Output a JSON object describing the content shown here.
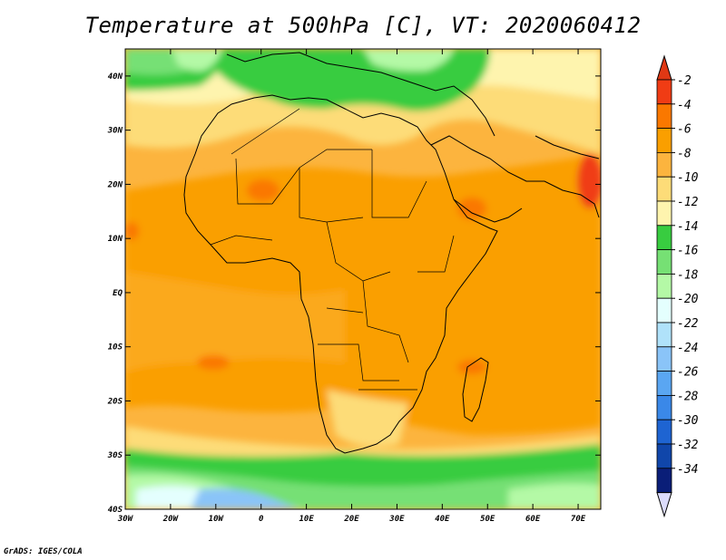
{
  "title": "Temperature at 500hPa [C], VT: 2020060412",
  "credit": "GrADS: IGES/COLA",
  "map": {
    "lon_range": [
      -30,
      75
    ],
    "lat_range": [
      -40,
      45
    ],
    "lon_ticks": [
      {
        "value": -30,
        "label": "30W"
      },
      {
        "value": -20,
        "label": "20W"
      },
      {
        "value": -10,
        "label": "10W"
      },
      {
        "value": 0,
        "label": "0"
      },
      {
        "value": 10,
        "label": "10E"
      },
      {
        "value": 20,
        "label": "20E"
      },
      {
        "value": 30,
        "label": "30E"
      },
      {
        "value": 40,
        "label": "40E"
      },
      {
        "value": 50,
        "label": "50E"
      },
      {
        "value": 60,
        "label": "60E"
      },
      {
        "value": 70,
        "label": "70E"
      }
    ],
    "lat_ticks": [
      {
        "value": 40,
        "label": "40N"
      },
      {
        "value": 30,
        "label": "30N"
      },
      {
        "value": 20,
        "label": "20N"
      },
      {
        "value": 10,
        "label": "10N"
      },
      {
        "value": 0,
        "label": "EQ"
      },
      {
        "value": -10,
        "label": "10S"
      },
      {
        "value": -20,
        "label": "20S"
      },
      {
        "value": -30,
        "label": "30S"
      },
      {
        "value": -40,
        "label": "40S"
      }
    ]
  },
  "colorbar": {
    "labels": [
      "-2",
      "-4",
      "-6",
      "-8",
      "-10",
      "-12",
      "-14",
      "-16",
      "-18",
      "-20",
      "-22",
      "-24",
      "-26",
      "-28",
      "-30",
      "-32",
      "-34"
    ],
    "colors": [
      "#f03c14",
      "#fa7800",
      "#fa9f00",
      "#fcb43e",
      "#fddc78",
      "#fef4ae",
      "#38cc40",
      "#76e074",
      "#b4f9a6",
      "#e4fffe",
      "#b0e2fa",
      "#8ac4f8",
      "#5aa6f2",
      "#3a88e8",
      "#1e64d2",
      "#1046aa",
      "#0a1e78"
    ],
    "top_color": "#e03814",
    "bottom_color": "#dcdcfc"
  },
  "colors": {
    "ocean_base": "#fcb43e",
    "tropical_band": "#fa9f00",
    "land_outline": "#000000"
  }
}
